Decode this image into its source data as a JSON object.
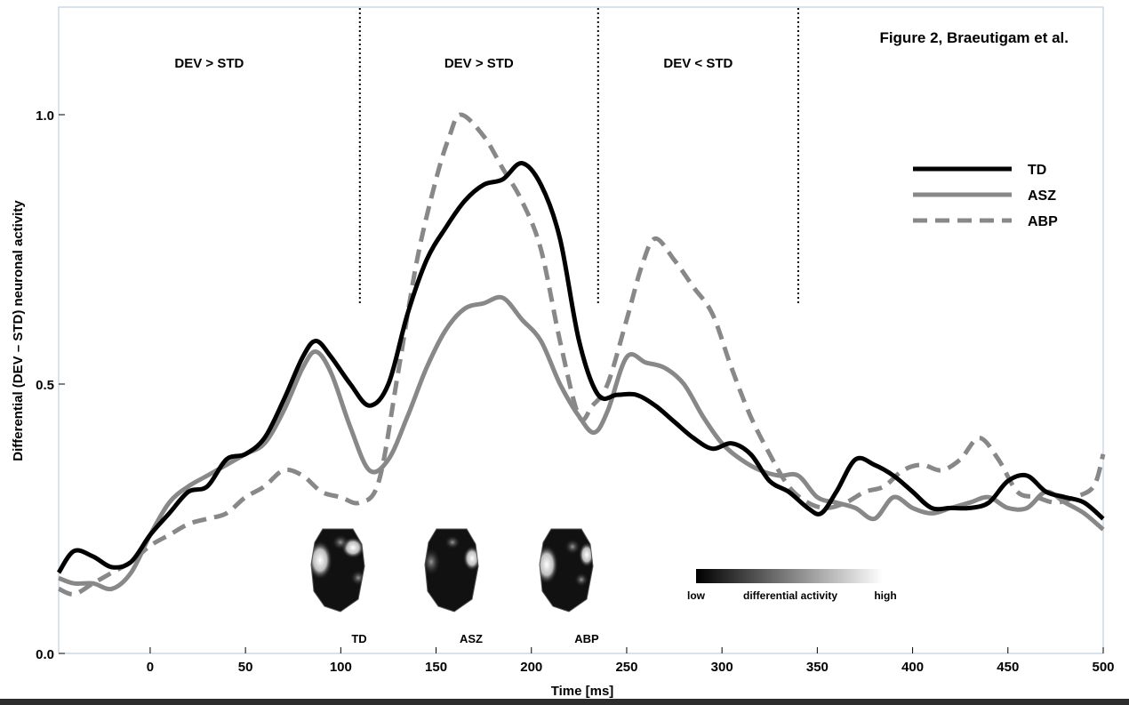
{
  "chart_data": {
    "type": "line",
    "title": "Figure 2, Braeutigam et al.",
    "xlabel": "Time [ms]",
    "ylabel": "Differential (DEV – STD) neuronal activity",
    "xlim": [
      -48,
      500
    ],
    "ylim": [
      0.0,
      1.0
    ],
    "x_ticks": [
      0,
      50,
      100,
      150,
      200,
      250,
      300,
      350,
      400,
      450,
      500
    ],
    "y_ticks": [
      0.0,
      0.5,
      1.0
    ],
    "y_tick_labels": [
      "0.0",
      "0.5",
      "1.0"
    ],
    "grid": false,
    "legend_position": "top-right",
    "regions": [
      {
        "label": "DEV > STD",
        "x_start": -48,
        "x_end": 110
      },
      {
        "label": "DEV > STD",
        "x_start": 110,
        "x_end": 235
      },
      {
        "label": "DEV < STD",
        "x_start": 235,
        "x_end": 340
      }
    ],
    "boundaries": [
      110,
      235,
      340
    ],
    "series": [
      {
        "name": "TD",
        "style": "solid",
        "color": "#000000",
        "points": [
          [
            -48,
            0.15
          ],
          [
            -40,
            0.19
          ],
          [
            -30,
            0.18
          ],
          [
            -20,
            0.16
          ],
          [
            -10,
            0.17
          ],
          [
            0,
            0.22
          ],
          [
            10,
            0.26
          ],
          [
            20,
            0.3
          ],
          [
            30,
            0.31
          ],
          [
            40,
            0.36
          ],
          [
            50,
            0.37
          ],
          [
            60,
            0.4
          ],
          [
            70,
            0.47
          ],
          [
            80,
            0.55
          ],
          [
            87,
            0.58
          ],
          [
            95,
            0.55
          ],
          [
            105,
            0.5
          ],
          [
            115,
            0.46
          ],
          [
            125,
            0.5
          ],
          [
            135,
            0.63
          ],
          [
            145,
            0.73
          ],
          [
            155,
            0.79
          ],
          [
            165,
            0.84
          ],
          [
            175,
            0.87
          ],
          [
            185,
            0.88
          ],
          [
            195,
            0.91
          ],
          [
            205,
            0.87
          ],
          [
            215,
            0.77
          ],
          [
            225,
            0.58
          ],
          [
            235,
            0.48
          ],
          [
            245,
            0.48
          ],
          [
            255,
            0.48
          ],
          [
            265,
            0.46
          ],
          [
            275,
            0.43
          ],
          [
            285,
            0.4
          ],
          [
            295,
            0.38
          ],
          [
            305,
            0.39
          ],
          [
            315,
            0.37
          ],
          [
            325,
            0.32
          ],
          [
            335,
            0.3
          ],
          [
            345,
            0.27
          ],
          [
            352,
            0.26
          ],
          [
            360,
            0.3
          ],
          [
            370,
            0.36
          ],
          [
            380,
            0.35
          ],
          [
            390,
            0.33
          ],
          [
            400,
            0.3
          ],
          [
            410,
            0.27
          ],
          [
            420,
            0.27
          ],
          [
            430,
            0.27
          ],
          [
            440,
            0.28
          ],
          [
            450,
            0.32
          ],
          [
            460,
            0.33
          ],
          [
            470,
            0.3
          ],
          [
            480,
            0.29
          ],
          [
            490,
            0.28
          ],
          [
            500,
            0.25
          ]
        ]
      },
      {
        "name": "ASZ",
        "style": "solid",
        "color": "#888888",
        "points": [
          [
            -48,
            0.14
          ],
          [
            -40,
            0.13
          ],
          [
            -30,
            0.13
          ],
          [
            -20,
            0.12
          ],
          [
            -10,
            0.15
          ],
          [
            0,
            0.22
          ],
          [
            10,
            0.28
          ],
          [
            20,
            0.31
          ],
          [
            30,
            0.33
          ],
          [
            40,
            0.35
          ],
          [
            50,
            0.37
          ],
          [
            60,
            0.39
          ],
          [
            70,
            0.45
          ],
          [
            80,
            0.53
          ],
          [
            87,
            0.56
          ],
          [
            95,
            0.52
          ],
          [
            105,
            0.42
          ],
          [
            115,
            0.34
          ],
          [
            125,
            0.36
          ],
          [
            135,
            0.44
          ],
          [
            145,
            0.53
          ],
          [
            155,
            0.6
          ],
          [
            165,
            0.64
          ],
          [
            175,
            0.65
          ],
          [
            185,
            0.66
          ],
          [
            195,
            0.62
          ],
          [
            205,
            0.58
          ],
          [
            215,
            0.5
          ],
          [
            225,
            0.44
          ],
          [
            233,
            0.41
          ],
          [
            240,
            0.45
          ],
          [
            250,
            0.55
          ],
          [
            260,
            0.54
          ],
          [
            270,
            0.53
          ],
          [
            280,
            0.5
          ],
          [
            290,
            0.44
          ],
          [
            300,
            0.39
          ],
          [
            310,
            0.36
          ],
          [
            320,
            0.34
          ],
          [
            330,
            0.33
          ],
          [
            340,
            0.33
          ],
          [
            350,
            0.29
          ],
          [
            360,
            0.28
          ],
          [
            370,
            0.27
          ],
          [
            380,
            0.25
          ],
          [
            390,
            0.29
          ],
          [
            400,
            0.27
          ],
          [
            410,
            0.26
          ],
          [
            420,
            0.27
          ],
          [
            430,
            0.28
          ],
          [
            440,
            0.29
          ],
          [
            450,
            0.27
          ],
          [
            460,
            0.27
          ],
          [
            470,
            0.3
          ],
          [
            480,
            0.28
          ],
          [
            490,
            0.26
          ],
          [
            500,
            0.23
          ]
        ]
      },
      {
        "name": "ABP",
        "style": "dashed",
        "color": "#888888",
        "points": [
          [
            -48,
            0.12
          ],
          [
            -40,
            0.11
          ],
          [
            -30,
            0.13
          ],
          [
            -20,
            0.15
          ],
          [
            -10,
            0.17
          ],
          [
            0,
            0.2
          ],
          [
            10,
            0.22
          ],
          [
            20,
            0.24
          ],
          [
            30,
            0.25
          ],
          [
            40,
            0.26
          ],
          [
            50,
            0.29
          ],
          [
            60,
            0.31
          ],
          [
            70,
            0.34
          ],
          [
            80,
            0.33
          ],
          [
            90,
            0.3
          ],
          [
            100,
            0.29
          ],
          [
            110,
            0.28
          ],
          [
            120,
            0.32
          ],
          [
            130,
            0.52
          ],
          [
            140,
            0.73
          ],
          [
            150,
            0.88
          ],
          [
            157,
            0.96
          ],
          [
            163,
            1.0
          ],
          [
            175,
            0.96
          ],
          [
            185,
            0.9
          ],
          [
            195,
            0.84
          ],
          [
            205,
            0.75
          ],
          [
            215,
            0.58
          ],
          [
            225,
            0.44
          ],
          [
            232,
            0.46
          ],
          [
            240,
            0.5
          ],
          [
            250,
            0.62
          ],
          [
            258,
            0.72
          ],
          [
            265,
            0.77
          ],
          [
            275,
            0.73
          ],
          [
            285,
            0.68
          ],
          [
            295,
            0.63
          ],
          [
            305,
            0.53
          ],
          [
            315,
            0.44
          ],
          [
            325,
            0.37
          ],
          [
            335,
            0.31
          ],
          [
            345,
            0.28
          ],
          [
            355,
            0.27
          ],
          [
            365,
            0.28
          ],
          [
            375,
            0.3
          ],
          [
            385,
            0.31
          ],
          [
            395,
            0.34
          ],
          [
            405,
            0.35
          ],
          [
            415,
            0.34
          ],
          [
            425,
            0.36
          ],
          [
            435,
            0.4
          ],
          [
            445,
            0.36
          ],
          [
            455,
            0.3
          ],
          [
            465,
            0.29
          ],
          [
            475,
            0.28
          ],
          [
            485,
            0.29
          ],
          [
            495,
            0.31
          ],
          [
            500,
            0.37
          ]
        ]
      }
    ],
    "topomaps": [
      {
        "label": "TD"
      },
      {
        "label": "ASZ"
      },
      {
        "label": "ABP"
      }
    ],
    "colorbar": {
      "low_label": "low",
      "mid_label": "differential activity",
      "high_label": "high"
    }
  }
}
